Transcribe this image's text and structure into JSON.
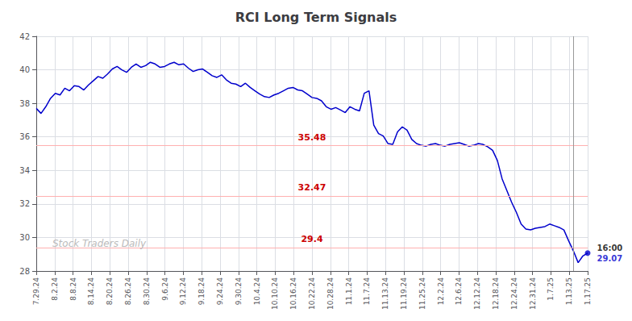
{
  "chart_data": {
    "type": "line",
    "title": "RCI Long Term Signals",
    "color": "#0000cc",
    "grid": true,
    "xlim": [
      0,
      116
    ],
    "ylim": [
      28,
      42
    ],
    "yticks": [
      28,
      30,
      32,
      34,
      36,
      38,
      40,
      42
    ],
    "xticks": [
      {
        "value": 0,
        "label": "7.29.24"
      },
      {
        "value": 3.8666666666666667,
        "label": "8.2.24"
      },
      {
        "value": 7.733333333333333,
        "label": "8.8.24"
      },
      {
        "value": 11.6,
        "label": "8.14.24"
      },
      {
        "value": 15.466666666666667,
        "label": "8.20.24"
      },
      {
        "value": 19.333333333333332,
        "label": "8.26.24"
      },
      {
        "value": 23.2,
        "label": "8.30.24"
      },
      {
        "value": 27.066666666666666,
        "label": "9.6.24"
      },
      {
        "value": 30.933333333333334,
        "label": "9.12.24"
      },
      {
        "value": 34.8,
        "label": "9.18.24"
      },
      {
        "value": 38.666666666666664,
        "label": "9.24.24"
      },
      {
        "value": 42.53333333333333,
        "label": "9.30.24"
      },
      {
        "value": 46.4,
        "label": "10.4.24"
      },
      {
        "value": 50.266666666666666,
        "label": "10.10.24"
      },
      {
        "value": 54.13333333333333,
        "label": "10.16.24"
      },
      {
        "value": 58,
        "label": "10.22.24"
      },
      {
        "value": 61.86666666666667,
        "label": "10.28.24"
      },
      {
        "value": 65.73333333333333,
        "label": "11.1.24"
      },
      {
        "value": 69.6,
        "label": "11.7.24"
      },
      {
        "value": 73.46666666666667,
        "label": "11.13.24"
      },
      {
        "value": 77.33333333333333,
        "label": "11.19.24"
      },
      {
        "value": 81.2,
        "label": "11.25.24"
      },
      {
        "value": 85.06666666666666,
        "label": "12.2.24"
      },
      {
        "value": 88.93333333333334,
        "label": "12.6.24"
      },
      {
        "value": 92.8,
        "label": "12.12.24"
      },
      {
        "value": 96.66666666666667,
        "label": "12.18.24"
      },
      {
        "value": 100.53333333333333,
        "label": "12.24.24"
      },
      {
        "value": 104.4,
        "label": "12.31.24"
      },
      {
        "value": 108.26666666666667,
        "label": "1.7.25"
      },
      {
        "value": 112.13333333333334,
        "label": "1.13.25"
      },
      {
        "value": 116,
        "label": "1.17.25"
      }
    ],
    "x": [
      0,
      1,
      2,
      3,
      4,
      5,
      6,
      7,
      8,
      9,
      10,
      11,
      12,
      13,
      14,
      15,
      16,
      17,
      18,
      19,
      20,
      21,
      22,
      23,
      24,
      25,
      26,
      27,
      28,
      29,
      30,
      31,
      32,
      33,
      34,
      35,
      36,
      37,
      38,
      39,
      40,
      41,
      42,
      43,
      44,
      45,
      46,
      47,
      48,
      49,
      50,
      51,
      52,
      53,
      54,
      55,
      56,
      57,
      58,
      59,
      60,
      61,
      62,
      63,
      64,
      65,
      66,
      67,
      68,
      69,
      70,
      71,
      72,
      73,
      74,
      75,
      76,
      77,
      78,
      79,
      80,
      81,
      82,
      83,
      84,
      85,
      86,
      87,
      88,
      89,
      90,
      91,
      92,
      93,
      94,
      95,
      96,
      97,
      98,
      99,
      100,
      101,
      102,
      103,
      104,
      105,
      106,
      107,
      108,
      109,
      110,
      111,
      112,
      113,
      114,
      115,
      116
    ],
    "values": [
      37.7,
      37.4,
      37.8,
      38.3,
      38.6,
      38.5,
      38.9,
      38.75,
      39.05,
      39.0,
      38.8,
      39.1,
      39.35,
      39.6,
      39.5,
      39.75,
      40.05,
      40.2,
      40.0,
      39.85,
      40.15,
      40.35,
      40.15,
      40.25,
      40.45,
      40.35,
      40.15,
      40.2,
      40.35,
      40.45,
      40.3,
      40.35,
      40.1,
      39.9,
      40.0,
      40.05,
      39.85,
      39.65,
      39.55,
      39.7,
      39.4,
      39.2,
      39.15,
      39.0,
      39.2,
      38.95,
      38.75,
      38.55,
      38.4,
      38.35,
      38.5,
      38.6,
      38.75,
      38.9,
      38.95,
      38.8,
      38.75,
      38.55,
      38.35,
      38.3,
      38.15,
      37.8,
      37.65,
      37.75,
      37.6,
      37.45,
      37.8,
      37.65,
      37.55,
      38.6,
      38.75,
      36.7,
      36.2,
      36.05,
      35.6,
      35.55,
      36.3,
      36.6,
      36.4,
      35.85,
      35.6,
      35.5,
      35.45,
      35.55,
      35.6,
      35.5,
      35.45,
      35.55,
      35.6,
      35.65,
      35.55,
      35.45,
      35.5,
      35.6,
      35.55,
      35.4,
      35.2,
      34.6,
      33.5,
      32.8,
      32.1,
      31.5,
      30.8,
      30.5,
      30.45,
      30.55,
      30.6,
      30.65,
      30.8,
      30.7,
      30.6,
      30.45,
      29.8,
      29.2,
      28.5,
      28.9,
      29.07
    ],
    "hlines": [
      {
        "y": 35.48,
        "label": "35.48",
        "color": "#ffb0b0",
        "label_color": "#cc0000"
      },
      {
        "y": 32.47,
        "label": "32.47",
        "color": "#ffb0b0",
        "label_color": "#cc0000"
      },
      {
        "y": 29.4,
        "label": "29.4",
        "color": "#ffb0b0",
        "label_color": "#cc0000"
      }
    ],
    "vlines": [
      112.984
    ],
    "end_labels": [
      "16:00",
      "29.07"
    ],
    "watermark": "Stock Traders Daily"
  }
}
